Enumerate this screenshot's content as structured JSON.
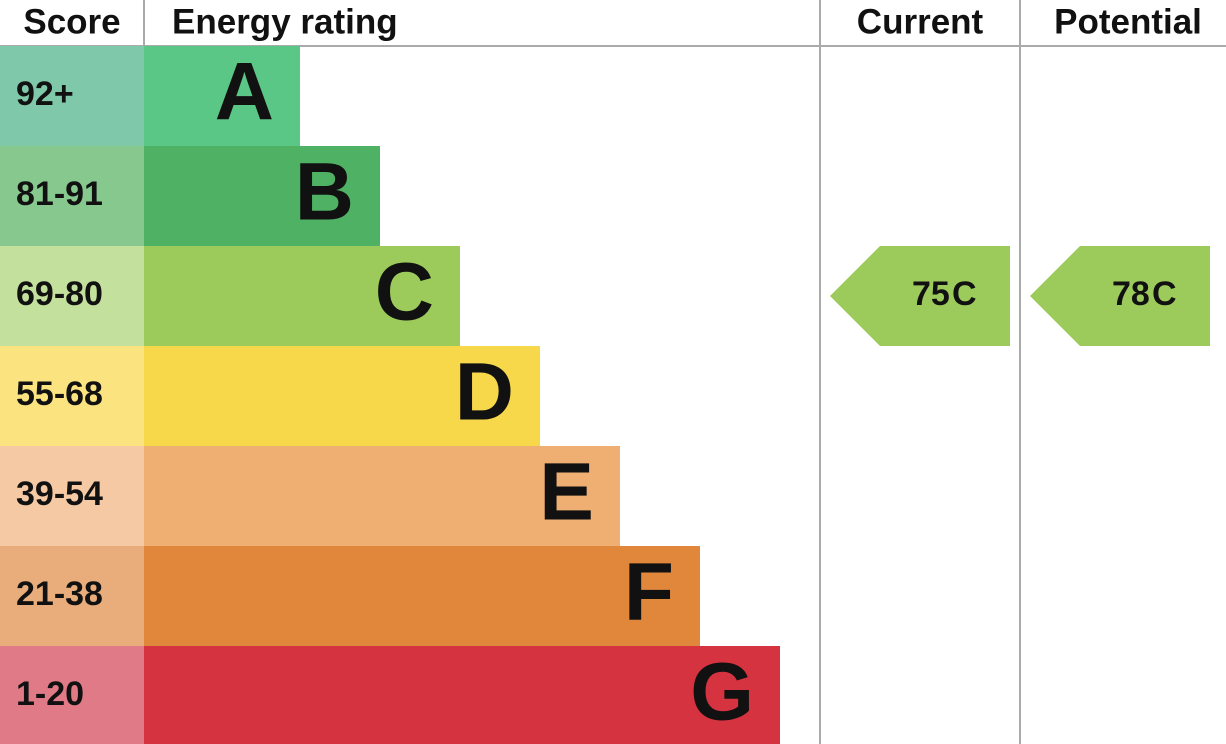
{
  "headers": {
    "score": "Score",
    "rating": "Energy rating",
    "current": "Current",
    "potential": "Potential"
  },
  "bands": [
    {
      "score": "92+",
      "letter": "A",
      "color": "#5bc787",
      "score_color": "#7fc8a9"
    },
    {
      "score": "81-91",
      "letter": "B",
      "color": "#4fb164",
      "score_color": "#86c88e"
    },
    {
      "score": "69-80",
      "letter": "C",
      "color": "#9dcb5b",
      "score_color": "#c3e09c"
    },
    {
      "score": "55-68",
      "letter": "D",
      "color": "#f7d84a",
      "score_color": "#fbe47f"
    },
    {
      "score": "39-54",
      "letter": "E",
      "color": "#efae72",
      "score_color": "#f4c9a3"
    },
    {
      "score": "21-38",
      "letter": "F",
      "color": "#e0873c",
      "score_color": "#e9ad7c"
    },
    {
      "score": "1-20",
      "letter": "G",
      "color": "#d5333f",
      "score_color": "#e17a87"
    }
  ],
  "current": {
    "value": 75,
    "letter": "C"
  },
  "potential": {
    "value": 78,
    "letter": "C"
  }
}
